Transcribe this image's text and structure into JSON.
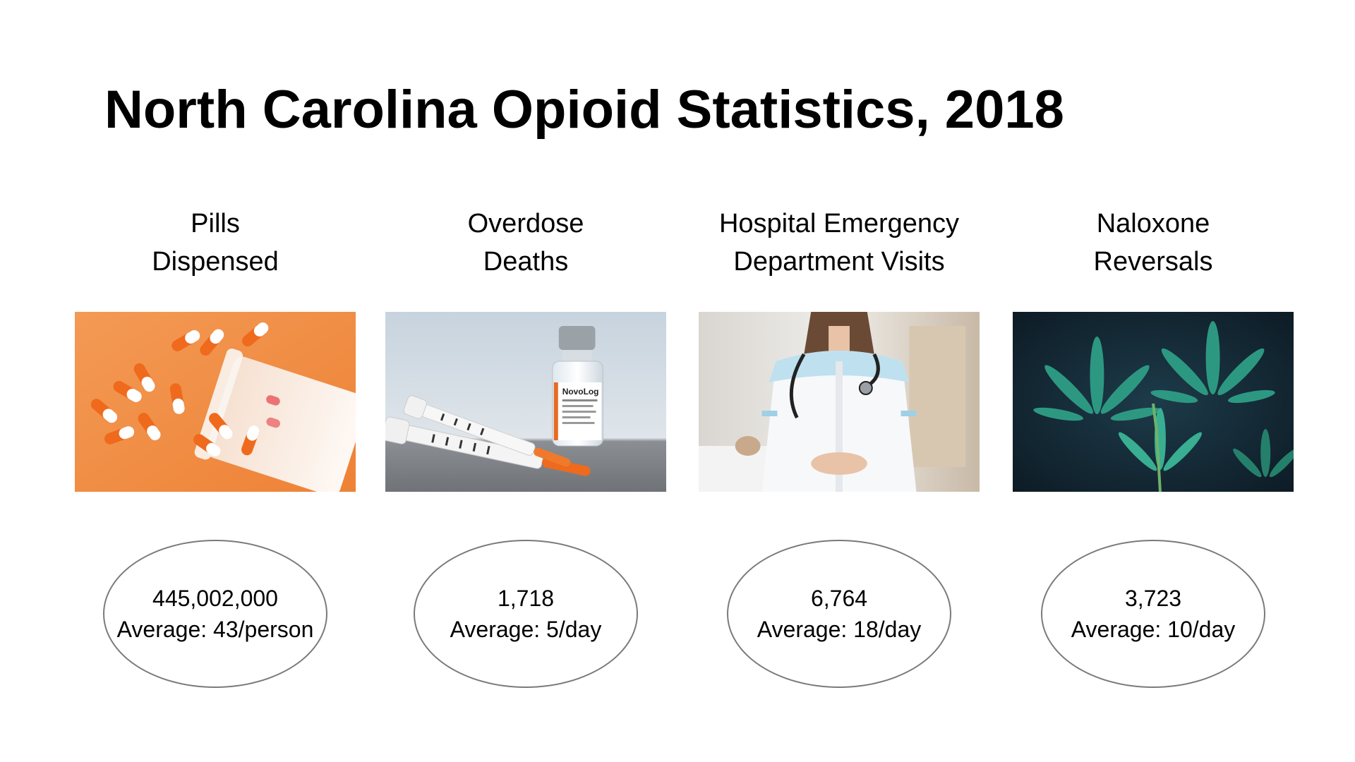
{
  "slide": {
    "title": "North Carolina Opioid Statistics, 2018"
  },
  "columns": [
    {
      "title_line1": "Pills",
      "title_line2": "Dispensed",
      "image": "orange-pills-bottle-photo",
      "value": "445,002,000",
      "average": "Average: 43/person"
    },
    {
      "title_line1": "Overdose",
      "title_line2": "Deaths",
      "image": "vial-and-syringes-photo",
      "vial_label": "NovoLog",
      "value": "1,718",
      "average": "Average: 5/day"
    },
    {
      "title_line1": "Hospital Emergency",
      "title_line2": "Department Visits",
      "image": "nurse-with-stethoscope-photo",
      "value": "6,764",
      "average": "Average: 18/day"
    },
    {
      "title_line1": "Naloxone",
      "title_line2": "Reversals",
      "image": "green-leaves-photo",
      "value": "3,723",
      "average": "Average: 10/day"
    }
  ],
  "colors": {
    "pills_bg": "#f2904a",
    "pill_orange": "#ef6a1c",
    "ellipse_border": "#7a7a7a",
    "leaf_green": "#2f9e86",
    "leaf_bg": "#0f2230"
  }
}
